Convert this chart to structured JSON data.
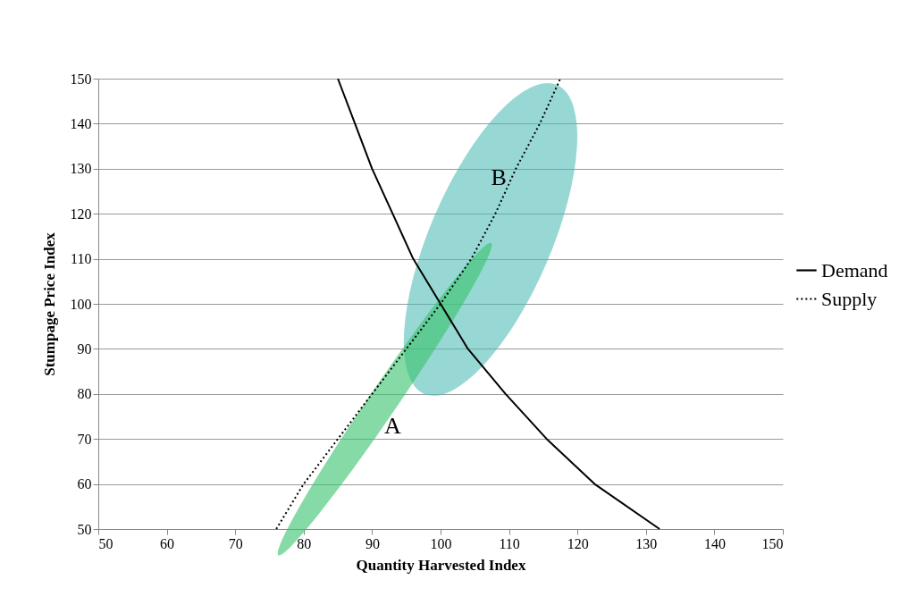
{
  "chart_data": {
    "type": "line",
    "xlabel": "Quantity Harvested Index",
    "ylabel": "Stumpage Price Index",
    "xlim": [
      50,
      150
    ],
    "xticks": [
      50,
      60,
      70,
      80,
      90,
      100,
      110,
      120,
      130,
      140,
      150
    ],
    "ylim": [
      50,
      150
    ],
    "yticks": [
      50,
      60,
      70,
      80,
      90,
      100,
      110,
      120,
      130,
      140,
      150
    ],
    "grid": "y",
    "legend": "right",
    "marker": "none",
    "series": [
      {
        "name": "Demand",
        "color": "#000000",
        "line_style": "solid",
        "x": [
          85,
          87.5,
          90,
          93,
          96,
          100,
          104,
          109.5,
          115.5,
          122.5,
          132
        ],
        "values": [
          150,
          140,
          130,
          120,
          110,
          100,
          90,
          80,
          70,
          60,
          50
        ]
      },
      {
        "name": "Supply",
        "color": "#000000",
        "line_style": "dotted",
        "x": [
          76,
          80,
          85,
          90,
          95,
          100,
          104.5,
          108,
          111,
          114.5,
          117.5
        ],
        "values": [
          50,
          60,
          70,
          80,
          90,
          100,
          110,
          120,
          130,
          140,
          150
        ]
      }
    ],
    "annotations": [
      "A",
      "B"
    ]
  }
}
